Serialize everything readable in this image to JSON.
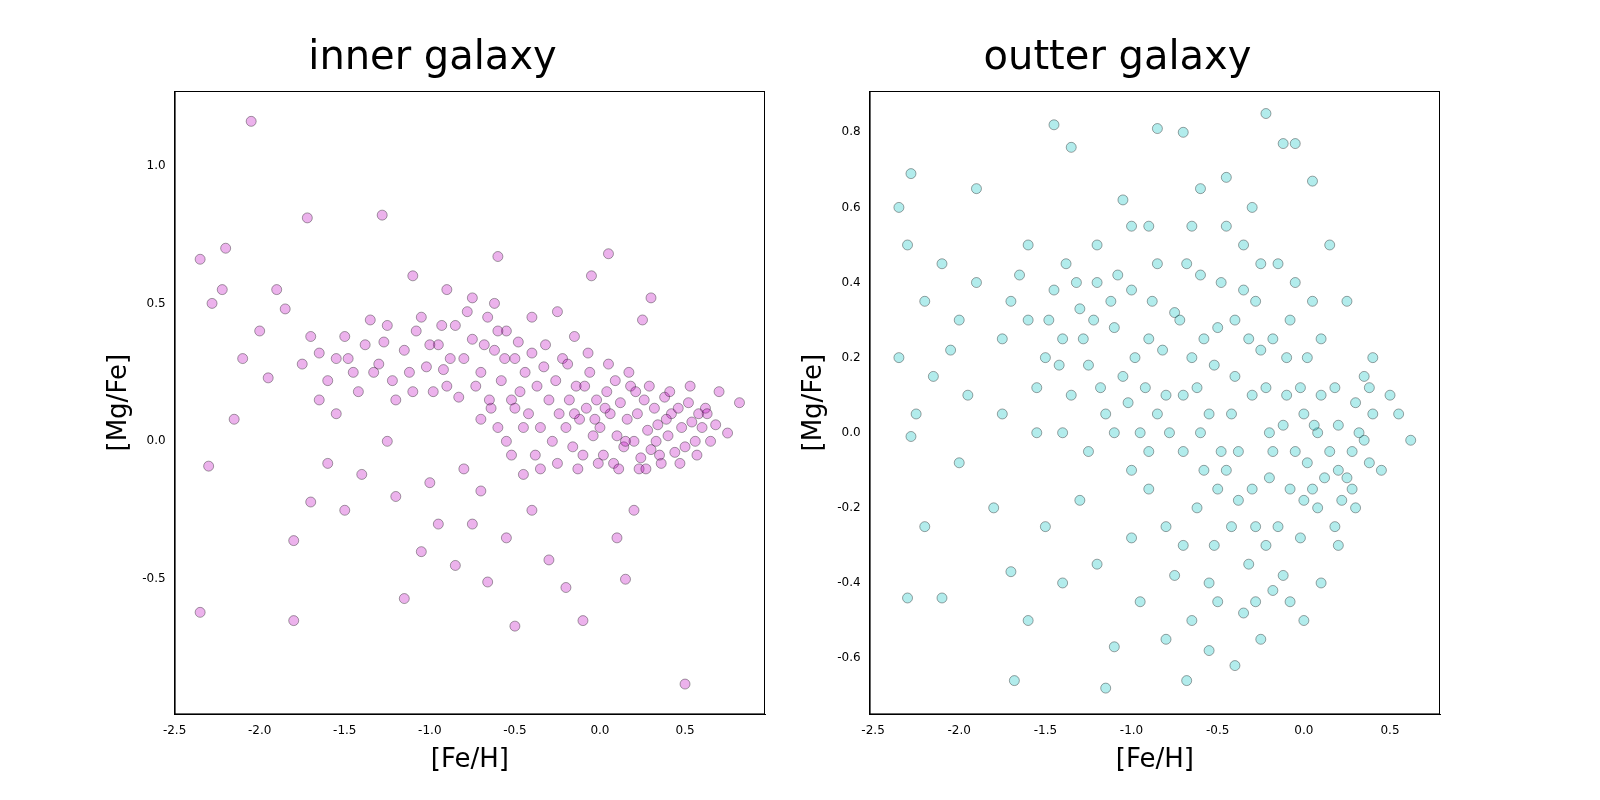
{
  "chart_data": [
    {
      "type": "scatter",
      "title": "inner galaxy",
      "x_label": "[Fe/H]",
      "y_label": "[Mg/Fe]",
      "color": "#bf00bf",
      "grid": false,
      "xlim": [
        -2.5,
        0.97
      ],
      "xticks": [
        -2.5,
        {
          "value": -2,
          "label": "-2.0"
        },
        -1.5,
        {
          "value": -1,
          "label": "-1.0"
        },
        -0.5,
        {
          "value": 0,
          "label": "0.0"
        },
        0.5
      ],
      "ylim": [
        -0.99,
        1.27
      ],
      "yticks": [
        -0.5,
        {
          "value": 0,
          "label": "0.0"
        },
        0.5,
        {
          "value": 1,
          "label": "1.0"
        }
      ],
      "x": [
        -1.55,
        -1.45,
        -1.38,
        -1.3,
        -1.22,
        -1.15,
        -1.08,
        -1.02,
        -0.95,
        -0.9,
        -0.85,
        -0.8,
        -0.75,
        -0.7,
        -0.66,
        -0.62,
        -0.58,
        -0.55,
        -0.5,
        -0.47,
        -1.5,
        -1.42,
        -1.35,
        -1.27,
        -1.2,
        -1.12,
        -1.05,
        -0.98,
        -0.93,
        -0.88,
        -0.83,
        -0.78,
        -0.73,
        -0.68,
        -0.64,
        -0.6,
        -0.56,
        -0.52,
        -0.48,
        -0.44,
        -1.65,
        -1.6,
        -1.7,
        -1.75,
        -1.48,
        -1.33,
        -1.25,
        -1.1,
        -1.0,
        -0.92,
        -0.42,
        -0.4,
        -0.37,
        -0.35,
        -0.33,
        -0.3,
        -0.28,
        -0.26,
        -0.24,
        -0.22,
        -0.2,
        -0.18,
        -0.16,
        -0.14,
        -0.12,
        -0.1,
        -0.08,
        -0.06,
        -0.04,
        -0.02,
        0.0,
        0.02,
        0.04,
        0.06,
        0.08,
        0.1,
        0.12,
        0.14,
        0.16,
        0.18,
        0.2,
        0.22,
        0.24,
        0.26,
        0.28,
        0.3,
        0.32,
        0.34,
        0.36,
        0.38,
        0.4,
        0.42,
        0.44,
        0.46,
        0.48,
        0.5,
        0.52,
        0.54,
        0.56,
        0.58,
        -0.45,
        -0.38,
        -0.32,
        -0.25,
        -0.19,
        -0.13,
        -0.07,
        -0.01,
        0.05,
        0.11,
        0.17,
        0.23,
        0.29,
        0.35,
        0.41,
        0.47,
        0.53,
        0.57,
        0.6,
        0.62,
        -0.15,
        -0.09,
        -0.03,
        0.03,
        0.09,
        0.15,
        0.21,
        0.27,
        0.33,
        0.39,
        -0.6,
        -0.55,
        -0.5,
        -0.65,
        -0.7,
        -0.52,
        -0.45,
        -0.35,
        -0.62,
        -0.75,
        -2.35,
        -2.3,
        -2.35,
        -2.05,
        -2.2,
        -2.22,
        -2.1,
        -2.0,
        -1.95,
        -1.9,
        -1.85,
        -1.8,
        -1.8,
        -1.72,
        -1.7,
        -1.6,
        -1.55,
        -1.5,
        -1.4,
        -1.28,
        -1.25,
        -1.2,
        -1.15,
        -1.1,
        -1.05,
        -1.0,
        -0.95,
        -0.9,
        -0.85,
        -0.8,
        -0.75,
        -0.7,
        -0.66,
        -0.6,
        -0.55,
        -0.5,
        -0.4,
        -0.3,
        -0.2,
        -0.1,
        -0.05,
        0.05,
        0.1,
        0.2,
        0.25,
        0.3,
        0.5,
        0.7,
        0.75,
        0.82,
        0.65,
        0.63,
        0.68,
        0.15,
        -0.25,
        -0.15,
        -0.4,
        -2.15,
        -2.28,
        -1.65
      ],
      "values": [
        0.3,
        0.25,
        0.35,
        0.28,
        0.22,
        0.33,
        0.4,
        0.27,
        0.35,
        0.2,
        0.42,
        0.3,
        0.37,
        0.25,
        0.45,
        0.33,
        0.22,
        0.4,
        0.3,
        0.18,
        0.38,
        0.18,
        0.44,
        0.36,
        0.15,
        0.25,
        0.45,
        0.18,
        0.42,
        0.3,
        0.16,
        0.47,
        0.2,
        0.35,
        0.12,
        0.4,
        0.3,
        0.15,
        0.36,
        0.25,
        0.32,
        0.22,
        0.38,
        0.28,
        0.3,
        0.25,
        0.42,
        0.18,
        0.35,
        0.26,
        0.1,
        0.32,
        0.2,
        0.05,
        0.27,
        0.15,
        0.0,
        0.22,
        0.1,
        0.3,
        0.05,
        0.15,
        -0.02,
        0.2,
        0.08,
        -0.05,
        0.12,
        0.25,
        0.02,
        0.15,
        0.05,
        -0.05,
        0.18,
        0.1,
        -0.08,
        0.02,
        0.14,
        -0.02,
        0.08,
        0.2,
        0.0,
        0.1,
        -0.06,
        0.15,
        0.04,
        -0.03,
        0.12,
        0.06,
        -0.08,
        0.16,
        0.02,
        0.1,
        -0.04,
        0.12,
        0.05,
        -0.02,
        0.14,
        0.07,
        0.0,
        0.1,
        0.05,
        -0.05,
        0.35,
        -0.08,
        0.28,
        -0.1,
        0.32,
        -0.08,
        0.28,
        -0.1,
        0.25,
        -0.1,
        0.2,
        -0.05,
        0.18,
        -0.08,
        0.2,
        -0.05,
        0.05,
        0.12,
        0.1,
        0.2,
        0.08,
        0.12,
        0.22,
        0.0,
        0.18,
        -0.1,
        0.0,
        0.08,
        0.05,
        0.0,
        0.12,
        0.15,
        0.08,
        -0.05,
        -0.12,
        -0.1,
        0.5,
        0.52,
        0.66,
        -0.09,
        -0.62,
        1.16,
        0.7,
        0.55,
        0.3,
        0.4,
        0.23,
        0.55,
        0.48,
        -0.36,
        -0.65,
        0.81,
        -0.22,
        -0.08,
        0.1,
        -0.25,
        -0.12,
        0.82,
        0.0,
        -0.2,
        -0.57,
        0.6,
        -0.4,
        -0.15,
        -0.3,
        0.55,
        -0.45,
        -0.1,
        -0.3,
        -0.18,
        -0.51,
        0.67,
        -0.35,
        -0.67,
        -0.25,
        -0.43,
        -0.53,
        -0.65,
        0.6,
        0.68,
        -0.35,
        -0.25,
        0.44,
        0.52,
        -0.88,
        0.18,
        0.03,
        0.14,
        0.0,
        0.1,
        0.06,
        -0.5,
        0.47,
        0.38,
        0.45,
        0.08,
        0.5,
        0.15
      ]
    },
    {
      "type": "scatter",
      "title": "outter galaxy",
      "x_label": "[Fe/H]",
      "y_label": "[Mg/Fe]",
      "color": "#00bfbf",
      "grid": false,
      "xlim": [
        -2.52,
        0.79
      ],
      "xticks": [
        -2.5,
        {
          "value": -2,
          "label": "-2.0"
        },
        -1.5,
        {
          "value": -1,
          "label": "-1.0"
        },
        -0.5,
        {
          "value": 0,
          "label": "0.0"
        },
        0.5
      ],
      "ylim": [
        -0.75,
        0.91
      ],
      "yticks": [
        -0.6,
        -0.4,
        -0.2,
        {
          "value": 0,
          "label": "0.0"
        },
        0.2,
        0.4,
        0.6,
        0.8
      ],
      "x": [
        -1.6,
        -1.5,
        -1.45,
        -1.4,
        -1.35,
        -1.3,
        -1.25,
        -1.2,
        -1.15,
        -1.1,
        -1.05,
        -1.0,
        -0.95,
        -0.9,
        -0.85,
        -0.8,
        -0.75,
        -0.7,
        -0.65,
        -0.6,
        -0.55,
        -0.5,
        -0.45,
        -0.4,
        -0.35,
        -0.3,
        -0.25,
        -0.2,
        -0.15,
        -0.1,
        -0.05,
        0.0,
        0.05,
        0.1,
        0.15,
        0.2,
        0.25,
        0.3,
        0.35,
        0.4,
        -1.7,
        -1.75,
        -1.65,
        -1.55,
        -1.48,
        -1.38,
        -1.28,
        -1.18,
        -1.08,
        -0.98,
        -0.88,
        -0.78,
        -0.68,
        -0.58,
        -0.48,
        -0.38,
        -0.28,
        -0.18,
        -0.08,
        0.02,
        -0.62,
        -0.52,
        -0.42,
        -0.32,
        -0.22,
        -0.12,
        -0.02,
        0.08,
        0.18,
        0.28,
        -0.7,
        -0.6,
        -0.5,
        -0.4,
        -0.3,
        -0.2,
        -0.1,
        0.0,
        0.1,
        0.2,
        -1.9,
        -2.0,
        -2.1,
        -2.2,
        -2.3,
        -2.35,
        -2.25,
        -2.15,
        -2.05,
        -1.95,
        -2.35,
        -2.28,
        -2.28,
        -2.3,
        -2.1,
        -2.2,
        -2.0,
        -1.9,
        -1.8,
        -1.7,
        -1.6,
        -1.5,
        -1.45,
        -1.4,
        -1.35,
        -1.3,
        -1.2,
        -1.1,
        -1.05,
        -1.0,
        -0.95,
        -0.9,
        -0.85,
        -0.8,
        -0.75,
        -0.7,
        -0.68,
        -0.65,
        -0.6,
        -0.55,
        -0.5,
        -0.45,
        -0.4,
        -0.35,
        -0.3,
        -0.25,
        -0.22,
        -0.18,
        -0.12,
        -0.05,
        0.0,
        0.05,
        0.1,
        0.15,
        0.2,
        0.25,
        0.3,
        0.4,
        0.45,
        0.5,
        0.55,
        0.62,
        0.35,
        0.38,
        -1.0,
        -0.9,
        -1.2,
        -1.6,
        -1.68,
        -1.15,
        -1.42,
        -1.32,
        -1.22,
        -1.12,
        -1.02,
        -0.92,
        -0.82,
        -0.72,
        -0.62,
        -0.52,
        -0.42,
        -0.32,
        -0.22,
        -0.12,
        -0.02,
        0.08,
        0.18,
        0.28,
        0.38,
        0.32,
        -0.58,
        -0.48,
        -0.38,
        -0.28,
        -0.18,
        -0.08,
        0.02,
        0.12,
        0.22,
        0.06,
        -0.9,
        -0.8,
        -0.7,
        -0.85,
        -1.0,
        -1.1,
        -1.25,
        -1.4,
        -1.55,
        -1.75,
        -0.65,
        -0.45,
        -0.35,
        -0.25,
        -0.15,
        -0.05,
        0.05,
        -0.55,
        -0.28,
        -0.08
      ],
      "values": [
        0.3,
        0.2,
        0.38,
        0.25,
        0.1,
        0.33,
        0.18,
        0.4,
        0.05,
        0.28,
        0.15,
        0.38,
        0.0,
        0.25,
        0.45,
        0.1,
        0.32,
        -0.05,
        0.2,
        0.42,
        0.05,
        0.28,
        -0.1,
        0.15,
        0.38,
        -0.15,
        0.22,
        0.0,
        -0.25,
        0.1,
        -0.05,
        0.05,
        -0.15,
        0.1,
        -0.05,
        0.02,
        -0.12,
        0.08,
        -0.02,
        0.05,
        0.35,
        0.25,
        0.42,
        0.12,
        0.3,
        0.45,
        0.25,
        0.12,
        0.42,
        0.2,
        0.35,
        0.0,
        0.45,
        0.25,
        0.4,
        -0.05,
        0.35,
        0.25,
        0.3,
        0.2,
        -0.2,
        -0.3,
        -0.25,
        -0.35,
        -0.3,
        -0.38,
        -0.28,
        -0.2,
        -0.25,
        -0.15,
        0.1,
        0.0,
        -0.15,
        0.3,
        0.1,
        -0.12,
        0.2,
        -0.18,
        0.25,
        -0.1,
        0.4,
        0.3,
        0.45,
        0.35,
        0.5,
        0.2,
        0.05,
        0.15,
        0.22,
        0.1,
        0.6,
        0.69,
        -0.01,
        -0.44,
        -0.44,
        -0.25,
        -0.08,
        0.65,
        -0.2,
        -0.37,
        -0.5,
        -0.25,
        0.82,
        -0.4,
        0.76,
        -0.18,
        -0.35,
        -0.57,
        0.62,
        -0.28,
        -0.45,
        -0.15,
        0.81,
        -0.55,
        -0.38,
        0.8,
        -0.66,
        -0.5,
        0.65,
        -0.58,
        -0.45,
        0.68,
        -0.62,
        -0.48,
        0.6,
        -0.55,
        0.85,
        -0.42,
        0.77,
        0.77,
        -0.5,
        0.67,
        -0.4,
        0.5,
        -0.3,
        0.35,
        -0.2,
        0.2,
        -0.1,
        0.1,
        0.05,
        -0.02,
        0.15,
        -0.08,
        0.55,
        0.55,
        0.5,
        0.5,
        -0.66,
        -0.68,
        0.18,
        0.4,
        0.3,
        0.35,
        0.08,
        0.12,
        0.22,
        0.3,
        0.12,
        0.18,
        0.05,
        0.25,
        0.12,
        0.02,
        0.12,
        0.0,
        0.12,
        -0.05,
        0.12,
        0.0,
        -0.1,
        -0.05,
        -0.18,
        -0.25,
        -0.05,
        -0.15,
        -0.08,
        -0.12,
        -0.18,
        0.02,
        -0.05,
        -0.25,
        -0.3,
        0.05,
        -0.1,
        0.0,
        -0.05,
        0.0,
        0.0,
        0.05,
        0.55,
        0.55,
        0.5,
        0.45,
        0.45,
        0.4,
        0.35,
        -0.4,
        -0.45,
        -0.45
      ]
    }
  ]
}
